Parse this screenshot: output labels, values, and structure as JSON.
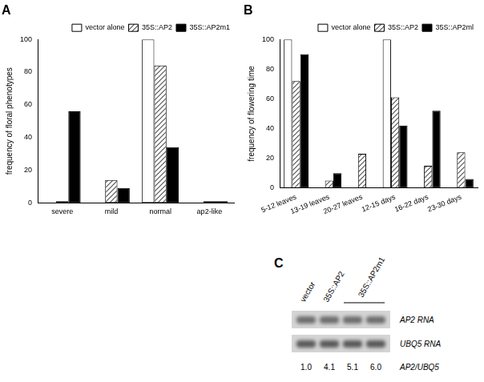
{
  "chart_data": [
    {
      "type": "bar",
      "title": "A",
      "y_label": "frequency of floral phenotypes",
      "categories": [
        "severe",
        "mild",
        "normal",
        "ap2-like"
      ],
      "series": [
        {
          "name": "vector alone",
          "color": "#ffffff",
          "values": [
            0,
            0,
            100,
            0
          ]
        },
        {
          "name": "35S::AP2",
          "color": "#555555",
          "line_style": "hatched",
          "values": [
            1,
            14,
            84,
            1
          ]
        },
        {
          "name": "35S::AP2m1",
          "color": "#000000",
          "values": [
            56,
            9,
            34,
            1
          ]
        }
      ],
      "ylim": [
        0,
        100
      ],
      "yticks": [
        0,
        20,
        40,
        60,
        80,
        100
      ],
      "grid": false,
      "legend": "upper right"
    },
    {
      "type": "bar",
      "title": "B",
      "y_label": "frequency of flowering time",
      "categories": [
        "5-12 leaves",
        "13-19 leaves",
        "20-27 leaves",
        "12-15 days",
        "16-22 days",
        "23-30 days"
      ],
      "series": [
        {
          "name": "vector alone",
          "color": "#ffffff",
          "values": [
            100,
            0,
            0,
            100,
            0,
            0
          ]
        },
        {
          "name": "35S::AP2",
          "color": "#555555",
          "line_style": "hatched",
          "values": [
            72,
            5,
            23,
            61,
            15,
            24
          ]
        },
        {
          "name": "35S::AP2ml",
          "color": "#000000",
          "values": [
            90,
            10,
            0,
            42,
            52,
            6
          ]
        }
      ],
      "ylim": [
        0,
        100
      ],
      "yticks": [
        0,
        20,
        40,
        60,
        80,
        100
      ],
      "grid": false,
      "legend": "upper right"
    }
  ],
  "panel_c": {
    "title": "C",
    "lane_groups": [
      {
        "label": "vector",
        "lanes": 1
      },
      {
        "label": "35S::AP2",
        "lanes": 1
      },
      {
        "label": "35S::AP2m1",
        "lanes": 2
      }
    ],
    "rows": [
      "AP2 RNA",
      "UBQ5 RNA"
    ],
    "ratio": {
      "label": "AP2/UBQ5",
      "values": [
        "1.0",
        "4.1",
        "5.1",
        "6.0"
      ]
    }
  }
}
